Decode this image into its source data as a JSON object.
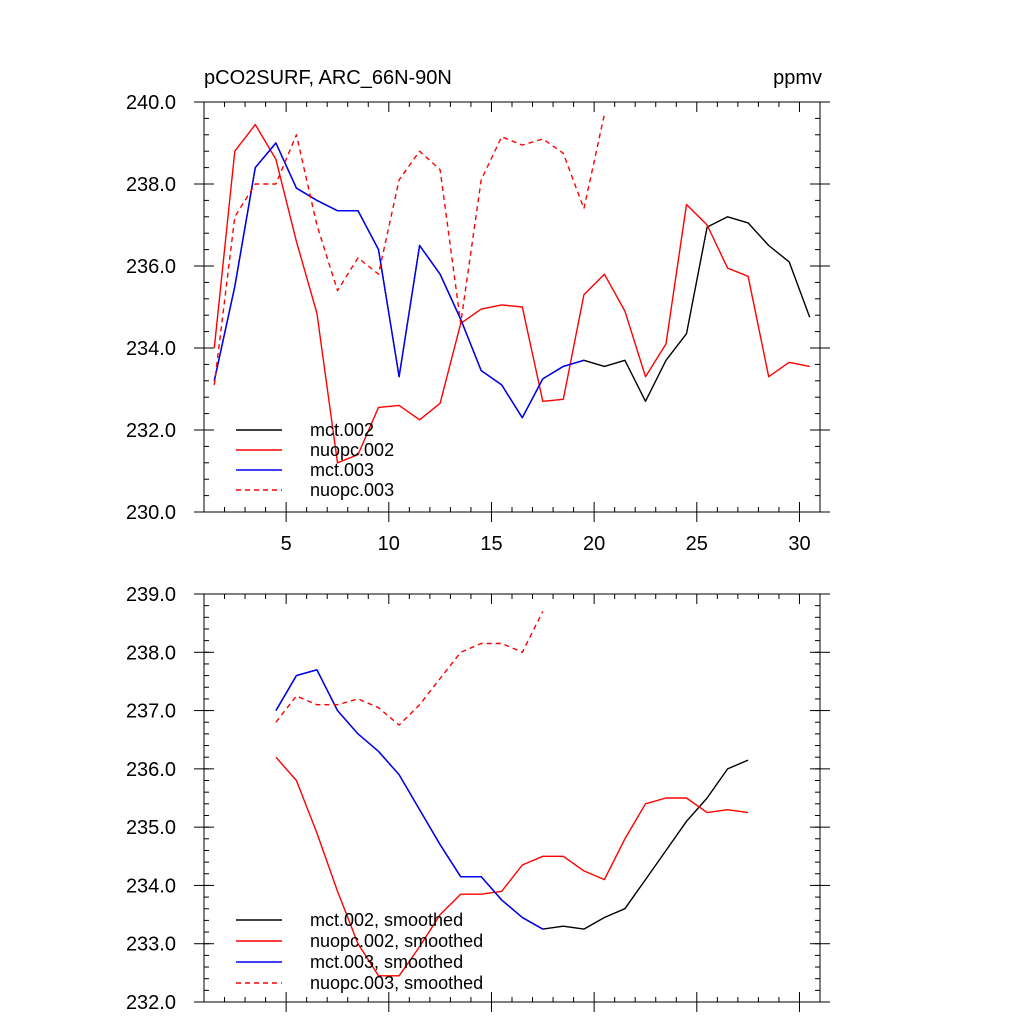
{
  "chart_data": [
    {
      "type": "line",
      "title_left": "pCO2SURF, ARC_66N-90N",
      "title_right": "ppmv",
      "xlim": [
        1,
        31
      ],
      "ylim": [
        230,
        240
      ],
      "x_ticks": [
        5,
        10,
        15,
        20,
        25,
        30
      ],
      "x_tick_labels": [
        "5",
        "10",
        "15",
        "20",
        "25",
        "30"
      ],
      "y_ticks": [
        230,
        232,
        234,
        236,
        238,
        240
      ],
      "y_tick_labels": [
        "230.0",
        "232.0",
        "234.0",
        "236.0",
        "238.0",
        "240.0"
      ],
      "legend_position": "bottom-left",
      "series": [
        {
          "name": "mct.002",
          "color": "#000000",
          "dash": "solid",
          "x": [
            1.5,
            2.5,
            3.5,
            4.5,
            5.5,
            6.5,
            7.5,
            8.5,
            9.5,
            10.5,
            11.5,
            12.5,
            13.5,
            14.5,
            15.5,
            16.5,
            17.5,
            18.5,
            19.5,
            20.5,
            21.5,
            22.5,
            23.5,
            24.5,
            25.5,
            26.5,
            27.5,
            28.5,
            29.5,
            30.5
          ],
          "values": [
            233.2,
            235.5,
            238.4,
            239.0,
            237.9,
            237.6,
            237.35,
            237.35,
            236.4,
            233.3,
            236.5,
            235.8,
            234.7,
            233.45,
            233.1,
            232.3,
            233.25,
            233.55,
            233.7,
            233.55,
            233.7,
            232.7,
            233.7,
            234.35,
            236.95,
            237.2,
            237.05,
            236.5,
            236.1,
            234.75
          ]
        },
        {
          "name": "nuopc.002",
          "color": "#ff0000",
          "dash": "solid",
          "x": [
            1.5,
            2.5,
            3.5,
            4.5,
            5.5,
            6.5,
            7.5,
            8.5,
            9.5,
            10.5,
            11.5,
            12.5,
            13.5,
            14.5,
            15.5,
            16.5,
            17.5,
            18.5,
            19.5,
            20.5,
            21.5,
            22.5,
            23.5,
            24.5,
            25.5,
            26.5,
            27.5,
            28.5,
            29.5,
            30.5
          ],
          "values": [
            234.0,
            238.8,
            239.45,
            238.6,
            236.6,
            234.85,
            231.2,
            231.4,
            232.55,
            232.6,
            232.25,
            232.65,
            234.6,
            234.95,
            235.05,
            235.0,
            232.7,
            232.75,
            235.3,
            235.8,
            234.9,
            233.3,
            234.1,
            237.5,
            237.0,
            235.95,
            235.75,
            233.3,
            233.65,
            233.55
          ]
        },
        {
          "name": "mct.003",
          "color": "#0000ff",
          "dash": "solid",
          "x": [
            1.5,
            2.5,
            3.5,
            4.5,
            5.5,
            6.5,
            7.5,
            8.5,
            9.5,
            10.5,
            11.5,
            12.5,
            13.5,
            14.5,
            15.5,
            16.5,
            17.5,
            18.5,
            19.5
          ],
          "values": [
            233.2,
            235.5,
            238.4,
            239.0,
            237.9,
            237.6,
            237.35,
            237.35,
            236.4,
            233.3,
            236.5,
            235.8,
            234.7,
            233.45,
            233.1,
            232.3,
            233.25,
            233.55,
            233.7
          ]
        },
        {
          "name": "nuopc.003",
          "color": "#ff0000",
          "dash": "dashed",
          "x": [
            1.5,
            2.5,
            3.5,
            4.5,
            5.5,
            6.5,
            7.5,
            8.5,
            9.5,
            10.5,
            11.5,
            12.5,
            13.5,
            14.5,
            15.5,
            16.5,
            17.5,
            18.5,
            19.5,
            20.5
          ],
          "values": [
            233.1,
            237.2,
            238.0,
            238.0,
            239.2,
            237.0,
            235.4,
            236.2,
            235.8,
            238.1,
            238.8,
            238.35,
            234.6,
            238.1,
            239.15,
            238.95,
            239.1,
            238.75,
            237.4,
            239.7
          ]
        }
      ]
    },
    {
      "type": "line",
      "xlim": [
        1,
        31
      ],
      "ylim": [
        232,
        239
      ],
      "x_ticks": [
        5,
        10,
        15,
        20,
        25,
        30
      ],
      "y_ticks": [
        232,
        233,
        234,
        235,
        236,
        237,
        238,
        239
      ],
      "y_tick_labels": [
        "232.0",
        "233.0",
        "234.0",
        "235.0",
        "236.0",
        "237.0",
        "238.0",
        "239.0"
      ],
      "legend_position": "bottom-left",
      "series": [
        {
          "name": "mct.002, smoothed",
          "color": "#000000",
          "dash": "solid",
          "x": [
            4.5,
            5.5,
            6.5,
            7.5,
            8.5,
            9.5,
            10.5,
            11.5,
            12.5,
            13.5,
            14.5,
            15.5,
            16.5,
            17.5,
            18.5,
            19.5,
            20.5,
            21.5,
            22.5,
            23.5,
            24.5,
            25.5,
            26.5,
            27.5
          ],
          "values": [
            237.0,
            237.6,
            237.7,
            237.0,
            236.6,
            236.3,
            235.9,
            235.3,
            234.7,
            234.15,
            234.15,
            233.75,
            233.45,
            233.25,
            233.3,
            233.25,
            233.45,
            233.6,
            234.1,
            234.6,
            235.1,
            235.5,
            236.0,
            236.15
          ]
        },
        {
          "name": "nuopc.002, smoothed",
          "color": "#ff0000",
          "dash": "solid",
          "x": [
            4.5,
            5.5,
            6.5,
            7.5,
            8.5,
            9.5,
            10.5,
            11.5,
            12.5,
            13.5,
            14.5,
            15.5,
            16.5,
            17.5,
            18.5,
            19.5,
            20.5,
            21.5,
            22.5,
            23.5,
            24.5,
            25.5,
            26.5,
            27.5
          ],
          "values": [
            236.2,
            235.8,
            234.9,
            233.9,
            233.0,
            232.45,
            232.45,
            232.95,
            233.5,
            233.85,
            233.85,
            233.9,
            234.35,
            234.5,
            234.5,
            234.25,
            234.1,
            234.8,
            235.4,
            235.5,
            235.5,
            235.25,
            235.3,
            235.25
          ]
        },
        {
          "name": "mct.003, smoothed",
          "color": "#0000ff",
          "dash": "solid",
          "x": [
            4.5,
            5.5,
            6.5,
            7.5,
            8.5,
            9.5,
            10.5,
            11.5,
            12.5,
            13.5,
            14.5,
            15.5,
            16.5,
            17.5
          ],
          "values": [
            237.0,
            237.6,
            237.7,
            237.0,
            236.6,
            236.3,
            235.9,
            235.3,
            234.7,
            234.15,
            234.15,
            233.75,
            233.45,
            233.25
          ]
        },
        {
          "name": "nuopc.003, smoothed",
          "color": "#ff0000",
          "dash": "dashed",
          "x": [
            4.5,
            5.5,
            6.5,
            7.5,
            8.5,
            9.5,
            10.5,
            11.5,
            12.5,
            13.5,
            14.5,
            15.5,
            16.5,
            17.5
          ],
          "values": [
            236.8,
            237.25,
            237.1,
            237.1,
            237.2,
            237.05,
            236.75,
            237.1,
            237.55,
            238.0,
            238.15,
            238.15,
            238.0,
            238.7
          ]
        }
      ]
    }
  ]
}
